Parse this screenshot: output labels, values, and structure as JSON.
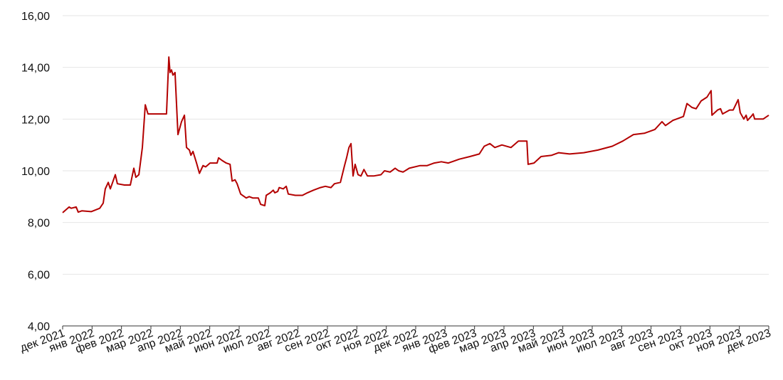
{
  "chart_data": {
    "type": "line",
    "xlim": [
      0,
      24
    ],
    "xticks": [
      {
        "value": 0,
        "label": "дек 2021"
      },
      {
        "value": 1,
        "label": "янв 2022"
      },
      {
        "value": 2,
        "label": "фев 2022"
      },
      {
        "value": 3,
        "label": "мар 2022"
      },
      {
        "value": 4,
        "label": "апр 2022"
      },
      {
        "value": 5,
        "label": "май 2022"
      },
      {
        "value": 6,
        "label": "июн 2022"
      },
      {
        "value": 7,
        "label": "июл 2022"
      },
      {
        "value": 8,
        "label": "авг 2022"
      },
      {
        "value": 9,
        "label": "сен 2022"
      },
      {
        "value": 10,
        "label": "окт 2022"
      },
      {
        "value": 11,
        "label": "ноя 2022"
      },
      {
        "value": 12,
        "label": "дек 2022"
      },
      {
        "value": 13,
        "label": "янв 2023"
      },
      {
        "value": 14,
        "label": "фев 2023"
      },
      {
        "value": 15,
        "label": "мар 2023"
      },
      {
        "value": 16,
        "label": "апр 2023"
      },
      {
        "value": 17,
        "label": "май 2023"
      },
      {
        "value": 18,
        "label": "июн 2023"
      },
      {
        "value": 19,
        "label": "июл 2023"
      },
      {
        "value": 20,
        "label": "авг 2023"
      },
      {
        "value": 21,
        "label": "сен 2023"
      },
      {
        "value": 22,
        "label": "окт 2023"
      },
      {
        "value": 23,
        "label": "ноя 2023"
      },
      {
        "value": 24,
        "label": "дек 2023"
      }
    ],
    "ylim": [
      4,
      16
    ],
    "yticks": [
      {
        "value": 4,
        "label": "4,00"
      },
      {
        "value": 6,
        "label": "6,00"
      },
      {
        "value": 8,
        "label": "8,00"
      },
      {
        "value": 10,
        "label": "10,00"
      },
      {
        "value": 12,
        "label": "12,00"
      },
      {
        "value": 14,
        "label": "14,00"
      },
      {
        "value": 16,
        "label": "16,00"
      }
    ],
    "grid": true,
    "x": [
      0,
      0.22,
      0.29,
      0.46,
      0.53,
      0.65,
      0.97,
      1.26,
      1.38,
      1.45,
      1.55,
      1.62,
      1.79,
      1.86,
      2.1,
      2.3,
      2.42,
      2.49,
      2.59,
      2.71,
      2.81,
      2.9,
      3.53,
      3.61,
      3.65,
      3.7,
      3.75,
      3.82,
      3.92,
      4.04,
      4.14,
      4.21,
      4.31,
      4.36,
      4.43,
      4.55,
      4.65,
      4.77,
      4.86,
      5.01,
      5.25,
      5.3,
      5.42,
      5.56,
      5.69,
      5.76,
      5.86,
      5.93,
      6.05,
      6.24,
      6.34,
      6.46,
      6.65,
      6.73,
      6.87,
      6.92,
      7.06,
      7.16,
      7.21,
      7.31,
      7.36,
      7.5,
      7.6,
      7.67,
      7.91,
      8.15,
      8.32,
      8.52,
      8.76,
      8.93,
      9.12,
      9.24,
      9.44,
      9.58,
      9.65,
      9.73,
      9.8,
      9.87,
      9.94,
      10.04,
      10.14,
      10.24,
      10.36,
      10.57,
      10.82,
      10.94,
      11.13,
      11.3,
      11.42,
      11.57,
      11.78,
      12.15,
      12.39,
      12.63,
      12.87,
      13.11,
      13.48,
      13.84,
      14.16,
      14.33,
      14.52,
      14.69,
      14.93,
      15.24,
      15.49,
      15.78,
      15.82,
      16.02,
      16.26,
      16.62,
      16.86,
      17.23,
      17.71,
      18.19,
      18.68,
      19.04,
      19.4,
      19.77,
      20.13,
      20.37,
      20.49,
      20.74,
      21.1,
      21.22,
      21.39,
      21.53,
      21.7,
      21.9,
      22.04,
      22.07,
      22.26,
      22.36,
      22.43,
      22.67,
      22.79,
      22.96,
      23.03,
      23.15,
      23.23,
      23.28,
      23.4,
      23.47,
      23.52,
      23.81,
      24.0
    ],
    "series": [
      {
        "color": "#b30000",
        "values": [
          8.38,
          8.6,
          8.55,
          8.6,
          8.4,
          8.45,
          8.42,
          8.55,
          8.75,
          9.3,
          9.55,
          9.3,
          9.85,
          9.5,
          9.45,
          9.45,
          10.1,
          9.75,
          9.85,
          10.9,
          12.55,
          12.2,
          12.2,
          14.4,
          13.8,
          13.9,
          13.7,
          13.8,
          11.4,
          11.9,
          12.15,
          10.9,
          10.8,
          10.6,
          10.75,
          10.3,
          9.9,
          10.2,
          10.15,
          10.3,
          10.3,
          10.5,
          10.4,
          10.3,
          10.25,
          9.6,
          9.65,
          9.5,
          9.1,
          8.95,
          9.0,
          8.95,
          8.95,
          8.7,
          8.65,
          9.05,
          9.15,
          9.25,
          9.15,
          9.2,
          9.35,
          9.3,
          9.4,
          9.1,
          9.05,
          9.05,
          9.15,
          9.25,
          9.35,
          9.4,
          9.35,
          9.5,
          9.55,
          10.2,
          10.5,
          10.9,
          11.05,
          9.8,
          10.25,
          9.85,
          9.8,
          10.05,
          9.8,
          9.8,
          9.85,
          10.0,
          9.95,
          10.1,
          10.0,
          9.95,
          10.1,
          10.2,
          10.2,
          10.3,
          10.35,
          10.3,
          10.45,
          10.55,
          10.65,
          10.95,
          11.05,
          10.9,
          11.0,
          10.9,
          11.15,
          11.15,
          10.25,
          10.3,
          10.55,
          10.6,
          10.7,
          10.65,
          10.7,
          10.8,
          10.95,
          11.15,
          11.4,
          11.45,
          11.6,
          11.9,
          11.75,
          11.95,
          12.1,
          12.6,
          12.45,
          12.4,
          12.7,
          12.85,
          13.1,
          12.15,
          12.35,
          12.4,
          12.2,
          12.35,
          12.35,
          12.75,
          12.25,
          12.0,
          12.15,
          11.95,
          12.1,
          12.2,
          12.0,
          12.0,
          12.15
        ]
      }
    ]
  }
}
